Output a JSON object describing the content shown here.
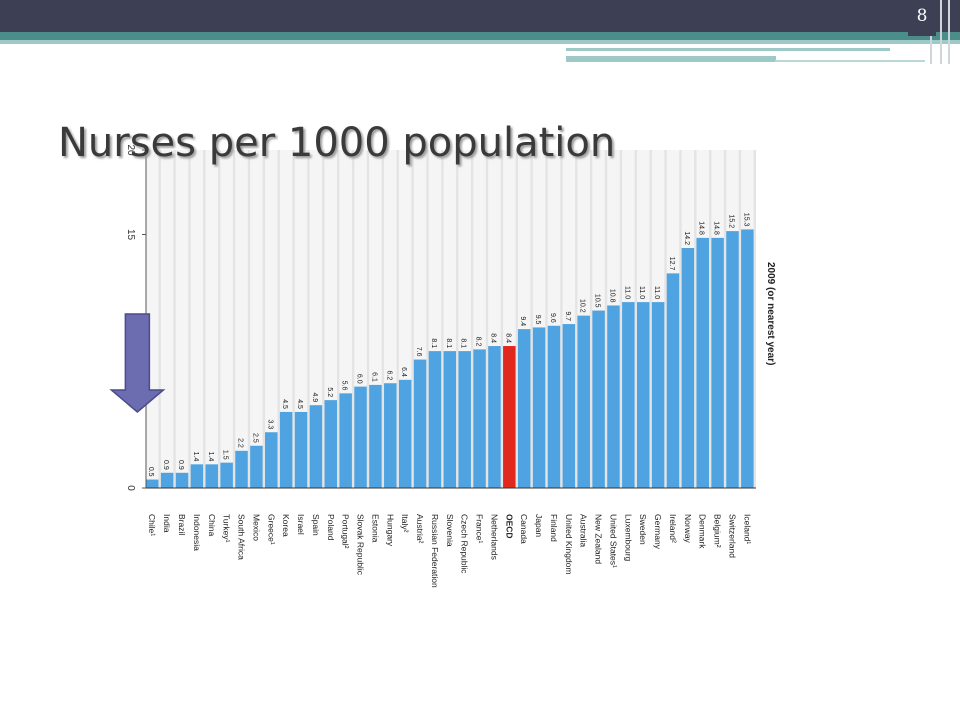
{
  "slide": {
    "page_number": "8",
    "title": "Nurses per 1000 population",
    "accent_colors": {
      "header": "#3d3f55",
      "teal": "#4b8d8a",
      "light_teal": "#9fc9c6"
    }
  },
  "chart_data": {
    "type": "bar",
    "title": "Nurses per 1000 population",
    "orientation": "vertical (printed rotated)",
    "ylabel": "",
    "ylim": [
      0,
      20
    ],
    "yticks": [
      0,
      5,
      10,
      15,
      20
    ],
    "grid": true,
    "legend_label": "2009 (or nearest year)",
    "bar_color": "#4fa3e0",
    "highlight_color": "#e0281e",
    "highlight_category": "OECD",
    "annotation": {
      "type": "arrow",
      "points_to": "Greece",
      "color": "#6c6db0"
    },
    "categories": [
      "Chile¹",
      "India",
      "Brazil",
      "Indonesia",
      "China",
      "Turkey¹",
      "South Africa",
      "Mexico",
      "Greece¹",
      "Korea",
      "Israel",
      "Spain",
      "Poland",
      "Portugal²",
      "Slovak Republic",
      "Estonia",
      "Hungary",
      "Italy²",
      "Austria²",
      "Russian Federation",
      "Slovenia",
      "Czech Republic",
      "France¹",
      "Netherlands",
      "OECD",
      "Canada",
      "Japan",
      "Finland",
      "United Kingdom",
      "Australia",
      "New Zealand",
      "United States¹",
      "Luxembourg",
      "Sweden",
      "Germany",
      "Ireland²",
      "Norway",
      "Denmark",
      "Belgium²",
      "Switzerland",
      "Iceland¹"
    ],
    "values": [
      0.5,
      0.9,
      0.9,
      1.4,
      1.4,
      1.5,
      2.2,
      2.5,
      3.3,
      4.5,
      4.5,
      4.9,
      5.2,
      5.6,
      6.0,
      6.1,
      6.2,
      6.4,
      7.6,
      8.1,
      8.1,
      8.1,
      8.2,
      8.4,
      8.4,
      9.4,
      9.5,
      9.6,
      9.7,
      10.2,
      10.5,
      10.8,
      11.0,
      11.0,
      11.0,
      12.7,
      14.2,
      14.8,
      14.8,
      15.2,
      15.3
    ],
    "value_labels": [
      "0.5",
      "0.9",
      "0.9",
      "1.4",
      "1.4",
      "1.5",
      "2.2",
      "2.5",
      "3.3",
      "4.5",
      "4.5",
      "4.9",
      "5.2",
      "5.6",
      "6.0",
      "6.1",
      "6.2",
      "6.4",
      "7.6",
      "8.1",
      "8.1",
      "8.1",
      "8.2",
      "8.4",
      "8.4",
      "9.4",
      "9.5",
      "9.6",
      "9.7",
      "10.2",
      "10.5",
      "10.8",
      "11.0",
      "11.0",
      "11.0",
      "12.7",
      "14.2",
      "14.8",
      "14.8",
      "15.2",
      "15.3"
    ]
  }
}
